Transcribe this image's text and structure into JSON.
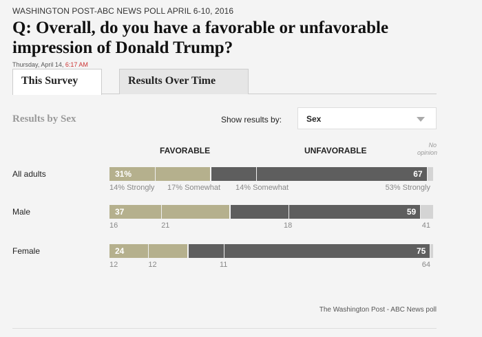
{
  "header": {
    "kicker": "WASHINGTON POST-ABC NEWS POLL APRIL 6-10, 2016",
    "question": "Q: Overall, do you have a favorable or unfavorable impression of Donald Trump?",
    "timestamp_date": "Thursday, April 14,",
    "timestamp_time": "6:17 AM"
  },
  "tabs": [
    {
      "label": "This Survey",
      "active": true
    },
    {
      "label": "Results Over Time",
      "active": false
    }
  ],
  "controls": {
    "results_title": "Results by Sex",
    "show_label": "Show results by:",
    "selected": "Sex"
  },
  "columns": {
    "favorable": "FAVORABLE",
    "unfavorable": "UNFAVORABLE",
    "no_opinion": "No opinion"
  },
  "colors": {
    "favorable": "#b5b08d",
    "unfavorable": "#5e5e5e",
    "no_opinion": "#d4d4d4"
  },
  "chart_data": {
    "type": "bar",
    "categories": [
      "All adults",
      "Male",
      "Female"
    ],
    "series": [
      {
        "name": "FAVORABLE",
        "values": [
          31,
          37,
          24
        ]
      },
      {
        "name": "UNFAVORABLE",
        "values": [
          67,
          59,
          75
        ]
      }
    ],
    "breakdown": [
      {
        "strong_fav": 14,
        "somewhat_fav": 17,
        "somewhat_unfav": 14,
        "strong_unfav": 53
      },
      {
        "strong_fav": 16,
        "somewhat_fav": 21,
        "somewhat_unfav": 18,
        "strong_unfav": 41
      },
      {
        "strong_fav": 12,
        "somewhat_fav": 12,
        "somewhat_unfav": 11,
        "strong_unfav": 64
      }
    ],
    "labels": [
      {
        "value": "31%",
        "sub": [
          "14% Strongly",
          "17% Somewhat",
          "14% Somewhat",
          "53% Strongly"
        ]
      },
      {
        "value": "37",
        "sub": [
          "16",
          "21",
          "18",
          "41"
        ]
      },
      {
        "value": "24",
        "sub": [
          "12",
          "12",
          "11",
          "64"
        ]
      }
    ],
    "unfav_labels": [
      "67",
      "59",
      "75"
    ],
    "stacked": true,
    "xlim": [
      0,
      100
    ]
  },
  "footer": {
    "credit": "The Washington Post - ABC News poll"
  }
}
